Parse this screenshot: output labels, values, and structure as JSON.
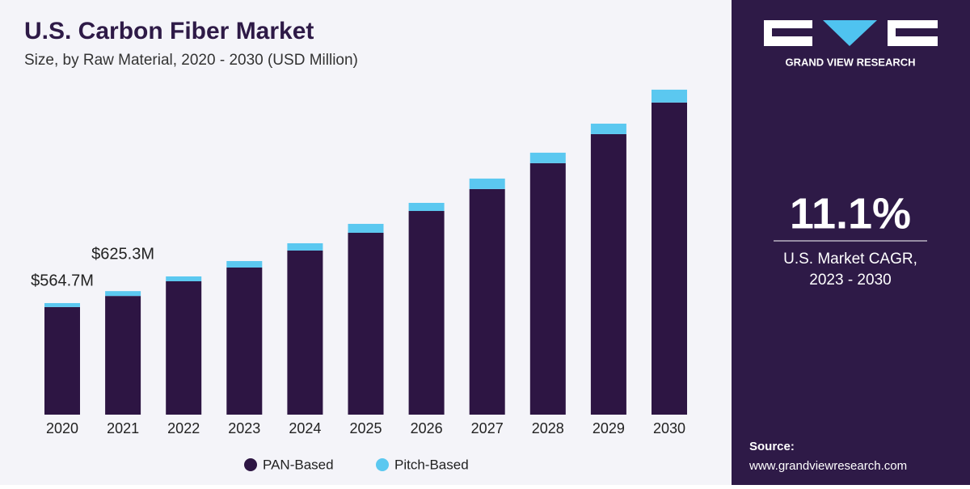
{
  "chart_data": {
    "type": "stacked-bar",
    "title": "U.S. Carbon Fiber Market",
    "subtitle": "Size, by Raw Material, 2020 - 2030 (USD Million)",
    "categories": [
      "2020",
      "2021",
      "2022",
      "2023",
      "2024",
      "2025",
      "2026",
      "2027",
      "2028",
      "2029",
      "2030"
    ],
    "series": [
      {
        "name": "PAN-Based",
        "color": "#2d1543",
        "values": [
          544.7,
          600.8,
          675.2,
          744.7,
          830.7,
          920.7,
          1031,
          1142,
          1273,
          1420,
          1580
        ]
      },
      {
        "name": "Pitch-Based",
        "color": "#5bc8f0",
        "values": [
          20,
          24.5,
          24.5,
          32.8,
          36.8,
          45,
          41,
          53,
          53,
          53,
          65
        ]
      }
    ],
    "annotations": [
      {
        "category": "2020",
        "value": 564.7,
        "label": "$564.7M"
      },
      {
        "category": "2021",
        "value": 625.3,
        "label": "$625.3M"
      }
    ],
    "ylim": [
      0,
      1700
    ]
  },
  "side_panel": {
    "logo_text": "GRAND VIEW RESEARCH",
    "cagr": "11.1%",
    "cagr_label": "U.S. Market CAGR,",
    "cagr_period": "2023 - 2030",
    "source_label": "Source:",
    "source_url": "www.grandviewresearch.com"
  }
}
